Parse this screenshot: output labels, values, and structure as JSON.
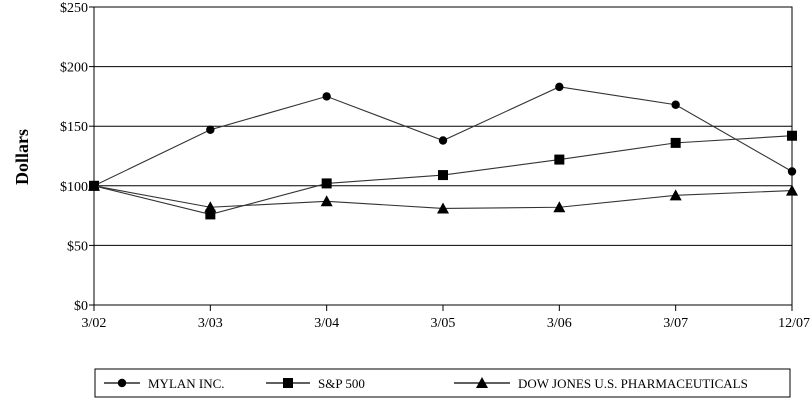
{
  "chart_data": {
    "type": "line",
    "title": "",
    "xlabel": "",
    "ylabel": "Dollars",
    "categories": [
      "3/02",
      "3/03",
      "3/04",
      "3/05",
      "3/06",
      "3/07",
      "12/07"
    ],
    "y_tick_labels": [
      "$0",
      "$50",
      "$100",
      "$150",
      "$200",
      "$250"
    ],
    "y_ticks": [
      0,
      50,
      100,
      150,
      200,
      250
    ],
    "ylim": [
      0,
      250
    ],
    "grid": "horizontal",
    "legend_position": "bottom",
    "series": [
      {
        "name": "MYLAN INC.",
        "marker": "circle",
        "values": [
          100,
          147,
          175,
          138,
          183,
          168,
          112
        ]
      },
      {
        "name": "S&P 500",
        "marker": "square",
        "values": [
          100,
          76,
          102,
          109,
          122,
          136,
          142
        ]
      },
      {
        "name": "DOW JONES U.S. PHARMACEUTICALS",
        "marker": "triangle",
        "values": [
          100,
          82,
          87,
          81,
          82,
          92,
          96
        ]
      }
    ],
    "colors": {
      "line": "#333333",
      "marker": "#000000",
      "grid": "#000000"
    }
  }
}
